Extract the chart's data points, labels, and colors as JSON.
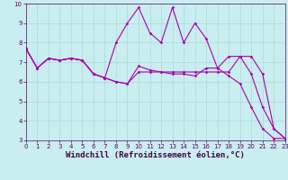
{
  "xlabel": "Windchill (Refroidissement éolien,°C)",
  "xlim": [
    0,
    23
  ],
  "ylim": [
    3,
    10
  ],
  "yticks": [
    3,
    4,
    5,
    6,
    7,
    8,
    9,
    10
  ],
  "xticks": [
    0,
    1,
    2,
    3,
    4,
    5,
    6,
    7,
    8,
    9,
    10,
    11,
    12,
    13,
    14,
    15,
    16,
    17,
    18,
    19,
    20,
    21,
    22,
    23
  ],
  "bg_color": "#c8eef0",
  "grid_color": "#b0d8d8",
  "line_color": "#aa00aa",
  "line1_x": [
    0,
    1,
    2,
    3,
    4,
    5,
    6,
    7,
    8,
    9,
    10,
    11,
    12,
    13,
    14,
    15,
    16,
    17,
    18,
    19,
    20,
    21,
    22,
    23
  ],
  "line1_y": [
    7.7,
    6.7,
    7.2,
    7.1,
    7.2,
    7.1,
    6.4,
    6.2,
    6.0,
    5.9,
    6.8,
    6.6,
    6.5,
    6.4,
    6.4,
    6.3,
    6.7,
    6.7,
    6.3,
    5.9,
    4.7,
    3.6,
    3.1,
    3.1
  ],
  "line2_x": [
    0,
    1,
    2,
    3,
    4,
    5,
    6,
    7,
    8,
    9,
    10,
    11,
    12,
    13,
    14,
    15,
    16,
    17,
    18,
    19,
    20,
    21,
    22,
    23
  ],
  "line2_y": [
    7.7,
    6.7,
    7.2,
    7.1,
    7.2,
    7.1,
    6.4,
    6.2,
    8.0,
    9.0,
    9.8,
    8.5,
    8.0,
    9.8,
    8.0,
    9.0,
    8.2,
    6.7,
    7.3,
    7.3,
    6.4,
    4.7,
    3.6,
    3.1
  ],
  "line3_x": [
    0,
    1,
    2,
    3,
    4,
    5,
    6,
    7,
    8,
    9,
    10,
    11,
    12,
    13,
    14,
    15,
    16,
    17,
    18,
    19,
    20,
    21,
    22,
    23
  ],
  "line3_y": [
    7.7,
    6.7,
    7.2,
    7.1,
    7.2,
    7.1,
    6.4,
    6.2,
    6.0,
    5.9,
    6.5,
    6.5,
    6.5,
    6.5,
    6.5,
    6.5,
    6.5,
    6.5,
    6.5,
    7.3,
    7.3,
    6.4,
    3.6,
    3.1
  ],
  "marker": "D",
  "marker_size": 1.8,
  "line_width": 0.8,
  "tick_fontsize": 5,
  "xlabel_fontsize": 6.5
}
